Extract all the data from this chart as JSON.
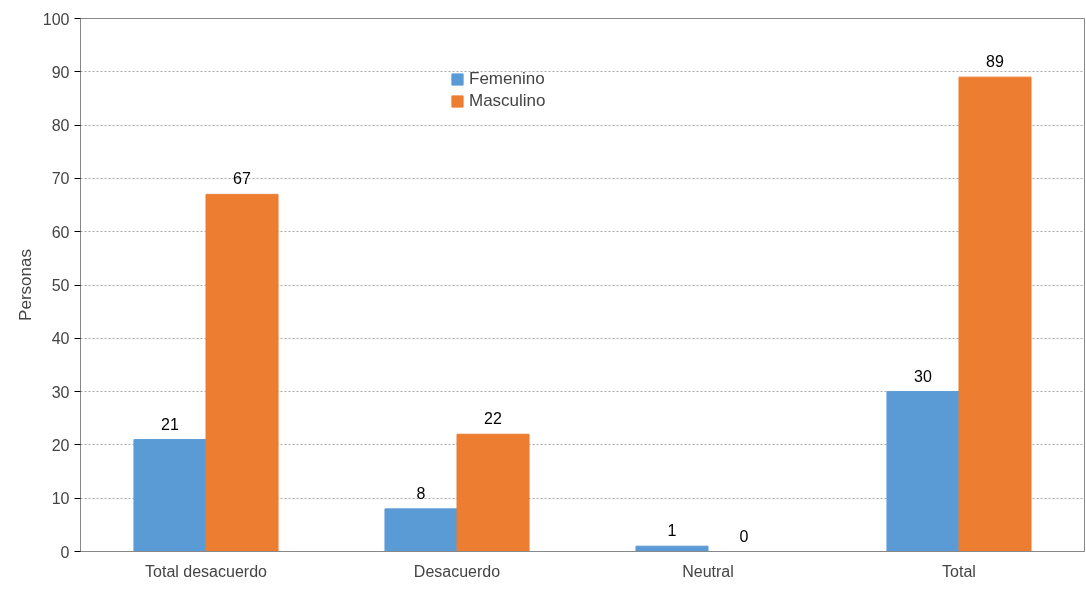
{
  "chart_data": {
    "type": "bar",
    "ylabel": "Personas",
    "categories": [
      "Total desacuerdo",
      "Desacuerdo",
      "Neutral",
      "Total"
    ],
    "series": [
      {
        "name": "Femenino",
        "color": "#5b9bd5",
        "values": [
          21,
          8,
          1,
          30
        ]
      },
      {
        "name": "Masculino",
        "color": "#ed7d31",
        "values": [
          67,
          22,
          0,
          89
        ]
      }
    ],
    "ylim": [
      0,
      100
    ],
    "yticks": [
      0,
      10,
      20,
      30,
      40,
      50,
      60,
      70,
      80,
      90,
      100
    ],
    "grid": "y",
    "legend": "top",
    "data_labels": true
  }
}
